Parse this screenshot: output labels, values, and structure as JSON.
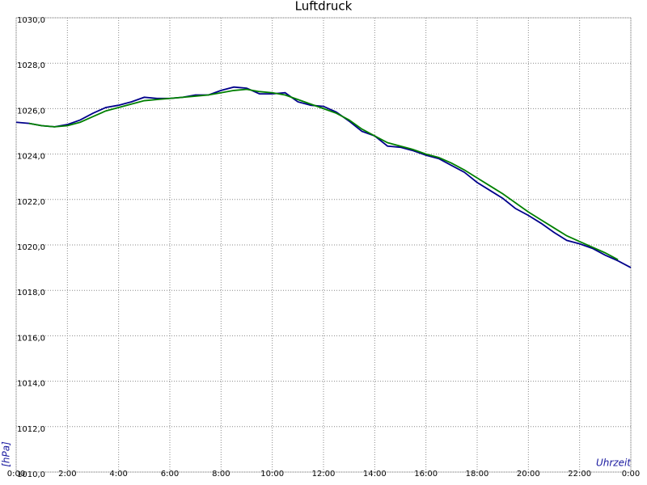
{
  "chart_data": {
    "type": "line",
    "title": "Luftdruck",
    "y_label": "[hPa]",
    "x_label": "Uhrzeit",
    "x": [
      0,
      0.5,
      1,
      1.5,
      2,
      2.5,
      3,
      3.5,
      4,
      4.5,
      5,
      5.5,
      6,
      6.5,
      7,
      7.5,
      8,
      8.5,
      9,
      9.5,
      10,
      10.5,
      11,
      11.5,
      12,
      12.5,
      13,
      13.5,
      14,
      14.5,
      15,
      15.5,
      16,
      16.5,
      17,
      17.5,
      18,
      18.5,
      19,
      19.5,
      20,
      20.5,
      21,
      21.5,
      22,
      22.5,
      23,
      23.5,
      24
    ],
    "series": [
      {
        "color": "#00008b",
        "values": [
          1025.4,
          1025.35,
          1025.25,
          1025.2,
          1025.3,
          1025.5,
          1025.8,
          1026.05,
          1026.15,
          1026.3,
          1026.5,
          1026.45,
          1026.45,
          1026.5,
          1026.6,
          1026.6,
          1026.8,
          1026.95,
          1026.9,
          1026.65,
          1026.65,
          1026.7,
          1026.3,
          1026.15,
          1026.1,
          1025.85,
          1025.45,
          1025.0,
          1024.8,
          1024.35,
          1024.3,
          1024.15,
          1023.95,
          1023.8,
          1023.5,
          1023.2,
          1022.75,
          1022.4,
          1022.05,
          1021.6,
          1021.3,
          1020.95,
          1020.55,
          1020.2,
          1020.05,
          1019.85,
          1019.55,
          1019.3,
          1019.0
        ]
      },
      {
        "color": "#008000",
        "values": [
          null,
          1025.35,
          1025.25,
          1025.2,
          1025.25,
          1025.4,
          1025.65,
          1025.9,
          1026.05,
          1026.2,
          1026.35,
          1026.4,
          1026.45,
          1026.5,
          1026.55,
          1026.6,
          1026.7,
          1026.8,
          1026.85,
          1026.75,
          1026.7,
          1026.6,
          1026.4,
          1026.2,
          1026.0,
          1025.8,
          1025.5,
          1025.1,
          1024.8,
          1024.5,
          1024.35,
          1024.2,
          1024.0,
          1023.85,
          1023.6,
          1023.3,
          1022.95,
          1022.6,
          1022.25,
          1021.85,
          1021.45,
          1021.1,
          1020.75,
          1020.4,
          1020.15,
          1019.9,
          1019.65,
          1019.35,
          null
        ]
      }
    ],
    "xlim": [
      0,
      24
    ],
    "xticks": [
      {
        "value": 0,
        "label": "0:00"
      },
      {
        "value": 2,
        "label": "2:00"
      },
      {
        "value": 4,
        "label": "4:00"
      },
      {
        "value": 6,
        "label": "6:00"
      },
      {
        "value": 8,
        "label": "8:00"
      },
      {
        "value": 10,
        "label": "10:00"
      },
      {
        "value": 12,
        "label": "12:00"
      },
      {
        "value": 14,
        "label": "14:00"
      },
      {
        "value": 16,
        "label": "16:00"
      },
      {
        "value": 18,
        "label": "18:00"
      },
      {
        "value": 20,
        "label": "20:00"
      },
      {
        "value": 22,
        "label": "22:00"
      },
      {
        "value": 24,
        "label": "0:00"
      }
    ],
    "ylim": [
      1010,
      1030
    ],
    "yticks": [
      {
        "value": 1010,
        "label": "1010,0"
      },
      {
        "value": 1012,
        "label": "1012,0"
      },
      {
        "value": 1014,
        "label": "1014,0"
      },
      {
        "value": 1016,
        "label": "1016,0"
      },
      {
        "value": 1018,
        "label": "1018,0"
      },
      {
        "value": 1020,
        "label": "1020,0"
      },
      {
        "value": 1022,
        "label": "1022,0"
      },
      {
        "value": 1024,
        "label": "1024,0"
      },
      {
        "value": 1026,
        "label": "1026,0"
      },
      {
        "value": 1028,
        "label": "1028,0"
      },
      {
        "value": 1030,
        "label": "1030,0"
      }
    ],
    "grid": true
  }
}
